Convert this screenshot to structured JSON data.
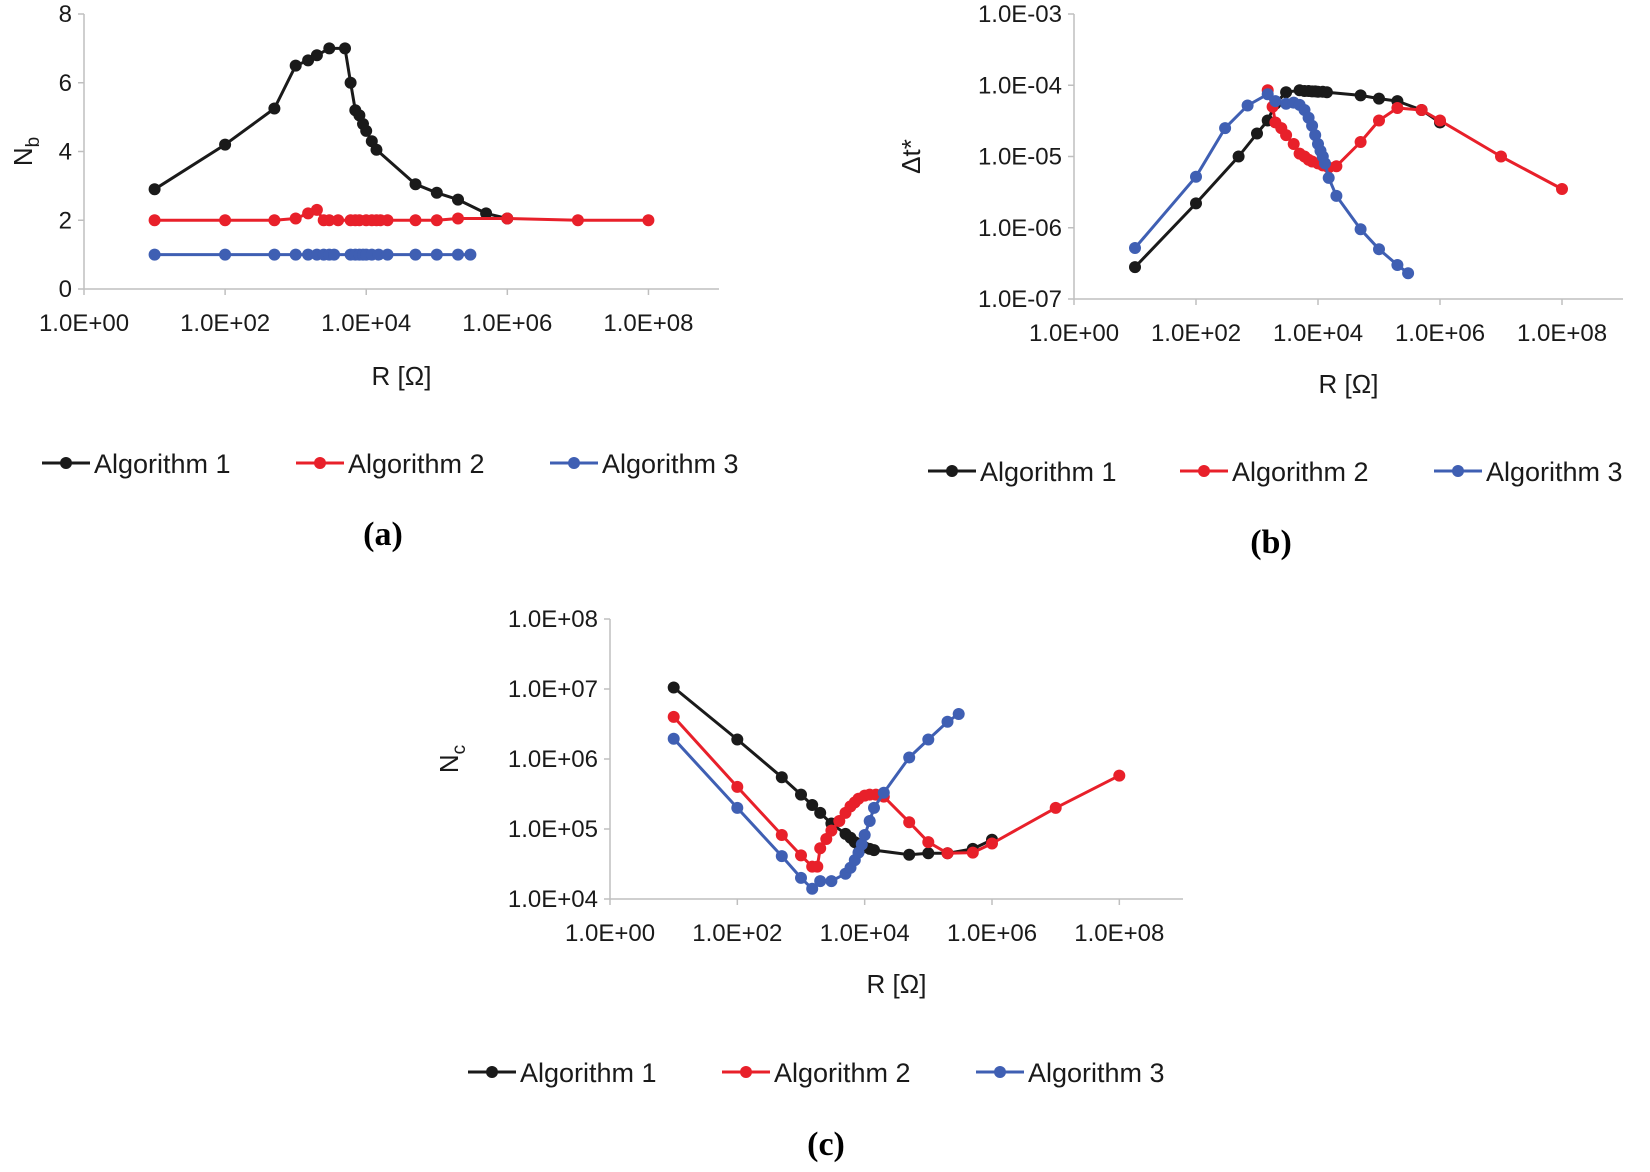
{
  "colors": {
    "Algorithm 1": "#1a1a1a",
    "Algorithm 2": "#e8202a",
    "Algorithm 3": "#3f5fb3"
  },
  "chart_data": [
    {
      "id": "a",
      "type": "line",
      "panel_label": "(a)",
      "xlabel": "R [Ω]",
      "ylabel": "N",
      "ylabel_sub": "b",
      "x_scale": "log",
      "y_scale": "linear",
      "xlim": [
        1,
        1000000000.0
      ],
      "ylim": [
        0,
        8
      ],
      "x_ticks": [
        "1.0E+00",
        "1.0E+02",
        "1.0E+04",
        "1.0E+06",
        "1.0E+08"
      ],
      "y_ticks": [
        "0",
        "2",
        "4",
        "6",
        "8"
      ],
      "legend": [
        "Algorithm 1",
        "Algorithm 2",
        "Algorithm 3"
      ],
      "series": [
        {
          "name": "Algorithm 1",
          "x": [
            10,
            100,
            500,
            1000,
            1500,
            2000,
            3000,
            5000,
            6000,
            7000,
            8000,
            9000,
            10000,
            12000,
            14000,
            50000,
            100000,
            200000,
            500000,
            1000000
          ],
          "y": [
            2.9,
            4.2,
            5.25,
            6.5,
            6.65,
            6.8,
            7.0,
            7.0,
            6.0,
            5.2,
            5.05,
            4.8,
            4.6,
            4.3,
            4.05,
            3.05,
            2.8,
            2.6,
            2.2,
            2.05
          ]
        },
        {
          "name": "Algorithm 2",
          "x": [
            10,
            100,
            500,
            1000,
            1500,
            2000,
            2500,
            3000,
            4000,
            6000,
            7000,
            8000,
            10000,
            12000,
            14000,
            16000,
            20000,
            50000,
            100000,
            200000,
            1000000,
            10000000,
            100000000
          ],
          "y": [
            2.0,
            2.0,
            2.0,
            2.05,
            2.2,
            2.3,
            2.0,
            2.0,
            2.0,
            2.0,
            2.0,
            2.0,
            2.0,
            2.0,
            2.0,
            2.0,
            2.0,
            2.0,
            2.0,
            2.05,
            2.05,
            2.0,
            2.0
          ]
        },
        {
          "name": "Algorithm 3",
          "x": [
            10,
            100,
            500,
            1000,
            1500,
            2000,
            2500,
            3000,
            3500,
            6000,
            7000,
            8000,
            9000,
            10000,
            12000,
            15000,
            20000,
            50000,
            100000,
            200000,
            300000
          ],
          "y": [
            1,
            1,
            1,
            1,
            1,
            1,
            1,
            1,
            1,
            1,
            1,
            1,
            1,
            1,
            1,
            1,
            1,
            1,
            1,
            1,
            1
          ]
        }
      ]
    },
    {
      "id": "b",
      "type": "line",
      "panel_label": "(b)",
      "xlabel": "R [Ω]",
      "ylabel": "Δt*",
      "ylabel_sub": "",
      "x_scale": "log",
      "y_scale": "log",
      "xlim": [
        1,
        1000000000.0
      ],
      "ylim": [
        1e-07,
        0.001
      ],
      "x_ticks": [
        "1.0E+00",
        "1.0E+02",
        "1.0E+04",
        "1.0E+06",
        "1.0E+08"
      ],
      "y_ticks": [
        "1.0E-07",
        "1.0E-06",
        "1.0E-05",
        "1.0E-04",
        "1.0E-03"
      ],
      "legend": [
        "Algorithm 1",
        "Algorithm 2",
        "Algorithm 3"
      ],
      "series": [
        {
          "name": "Algorithm 1",
          "x": [
            10,
            100,
            500,
            1000,
            1500,
            2000,
            3000,
            5000,
            6000,
            7000,
            8000,
            9000,
            10000,
            12000,
            14000,
            50000,
            100000,
            200000,
            500000,
            1000000
          ],
          "y": [
            2.8e-07,
            2.2e-06,
            1e-05,
            2.1e-05,
            3.2e-05,
            5.5e-05,
            8e-05,
            8.5e-05,
            8.3e-05,
            8.3e-05,
            8.2e-05,
            8.2e-05,
            8.1e-05,
            8.1e-05,
            8e-05,
            7.2e-05,
            6.5e-05,
            6e-05,
            4.5e-05,
            3e-05
          ]
        },
        {
          "name": "Algorithm 2",
          "x": [
            1500,
            1800,
            2000,
            2500,
            3000,
            4000,
            5000,
            6000,
            7000,
            8000,
            10000,
            12000,
            15000,
            20000,
            50000,
            100000,
            200000,
            500000,
            1000000,
            10000000,
            100000000
          ],
          "y": [
            8.5e-05,
            5e-05,
            3e-05,
            2.5e-05,
            2e-05,
            1.5e-05,
            1.1e-05,
            1e-05,
            9e-06,
            8.5e-06,
            8e-06,
            7.5e-06,
            7e-06,
            7.3e-06,
            1.6e-05,
            3.2e-05,
            4.8e-05,
            4.5e-05,
            3.2e-05,
            1e-05,
            3.5e-06
          ]
        },
        {
          "name": "Algorithm 3",
          "x": [
            10,
            100,
            300,
            700,
            1500,
            2000,
            3000,
            4000,
            5000,
            6000,
            7000,
            8000,
            9000,
            10000,
            11000,
            12000,
            13000,
            15000,
            20000,
            50000,
            100000,
            200000,
            300000
          ],
          "y": [
            5.2e-07,
            5.2e-06,
            2.5e-05,
            5.2e-05,
            7.5e-05,
            6e-05,
            5.5e-05,
            5.7e-05,
            5.3e-05,
            4.5e-05,
            3.5e-05,
            2.7e-05,
            2e-05,
            1.5e-05,
            1.2e-05,
            1e-05,
            8e-06,
            5e-06,
            2.8e-06,
            9.5e-07,
            5e-07,
            3e-07,
            2.3e-07
          ]
        }
      ]
    },
    {
      "id": "c",
      "type": "line",
      "panel_label": "(c)",
      "xlabel": "R [Ω]",
      "ylabel": "N",
      "ylabel_sub": "c",
      "x_scale": "log",
      "y_scale": "log",
      "xlim": [
        1,
        1000000000.0
      ],
      "ylim": [
        10000.0,
        100000000.0
      ],
      "x_ticks": [
        "1.0E+00",
        "1.0E+02",
        "1.0E+04",
        "1.0E+06",
        "1.0E+08"
      ],
      "y_ticks": [
        "1.0E+04",
        "1.0E+05",
        "1.0E+06",
        "1.0E+07",
        "1.0E+08"
      ],
      "legend": [
        "Algorithm 1",
        "Algorithm 2",
        "Algorithm 3"
      ],
      "series": [
        {
          "name": "Algorithm 1",
          "x": [
            10,
            100,
            500,
            1000,
            1500,
            2000,
            3000,
            5000,
            6000,
            7000,
            8000,
            9000,
            10000,
            12000,
            14000,
            50000,
            100000,
            200000,
            500000,
            1000000
          ],
          "y": [
            10500000.0,
            1900000.0,
            550000.0,
            310000.0,
            220000.0,
            170000.0,
            120000.0,
            85000.0,
            75000.0,
            65000.0,
            60000.0,
            58000.0,
            55000.0,
            52000.0,
            50000.0,
            43000.0,
            45000.0,
            45000.0,
            52000.0,
            70000.0
          ]
        },
        {
          "name": "Algorithm 2",
          "x": [
            10,
            100,
            500,
            1000,
            1500,
            1800,
            2000,
            2500,
            3000,
            4000,
            5000,
            6000,
            7000,
            8000,
            10000,
            12000,
            15000,
            20000,
            50000,
            100000,
            200000,
            500000,
            1000000,
            10000000,
            100000000
          ],
          "y": [
            4000000.0,
            400000.0,
            82000.0,
            42000.0,
            29000.0,
            29000.0,
            53000.0,
            72000.0,
            95000.0,
            130000.0,
            170000.0,
            210000.0,
            240000.0,
            270000.0,
            300000.0,
            310000.0,
            310000.0,
            290000.0,
            125000.0,
            65000.0,
            45000.0,
            46000.0,
            62000.0,
            200000.0,
            580000.0
          ]
        },
        {
          "name": "Algorithm 3",
          "x": [
            10,
            100,
            500,
            1000,
            1500,
            2000,
            3000,
            5000,
            6000,
            7000,
            8000,
            9000,
            10000,
            12000,
            14000,
            20000,
            50000,
            100000,
            200000,
            300000
          ],
          "y": [
            1950000.0,
            200000.0,
            41000.0,
            20000.0,
            14000.0,
            18000.0,
            18000.0,
            23000.0,
            28000.0,
            36000.0,
            46000.0,
            60000.0,
            82000.0,
            130000.0,
            200000.0,
            330000.0,
            1050000.0,
            1900000.0,
            3400000.0,
            4400000.0
          ]
        }
      ]
    }
  ]
}
